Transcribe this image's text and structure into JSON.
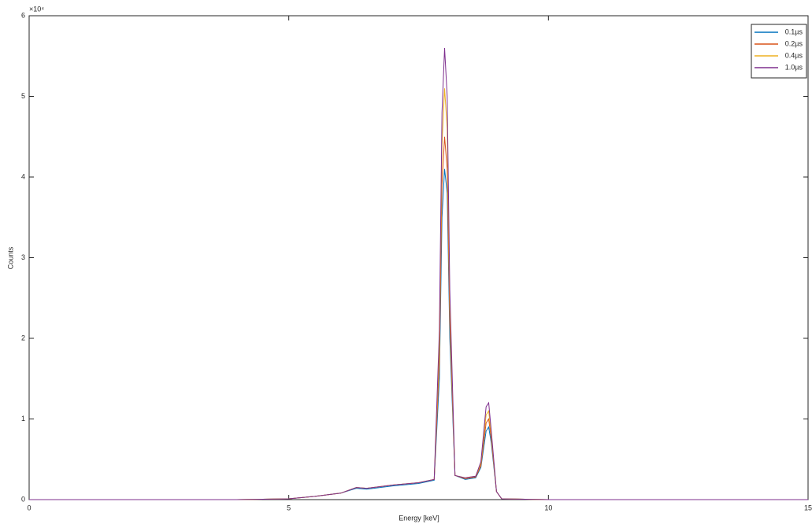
{
  "chart_data": {
    "type": "line",
    "x_label": "Energy [keV]",
    "y_label": "Counts",
    "y_scale_label": "×10⁴",
    "x": [
      0,
      4,
      5,
      5.5,
      6,
      6.3,
      6.5,
      7,
      7.5,
      7.8,
      7.9,
      7.95,
      8.0,
      8.05,
      8.1,
      8.2,
      8.4,
      8.6,
      8.7,
      8.8,
      8.85,
      8.9,
      9.0,
      9.1,
      10,
      15
    ],
    "series": [
      {
        "name": "0.1µs",
        "color": "#0072bd",
        "values": [
          0,
          0,
          0.01,
          0.04,
          0.08,
          0.14,
          0.13,
          0.17,
          0.2,
          0.24,
          1.5,
          3.5,
          4.1,
          3.8,
          2.0,
          0.3,
          0.25,
          0.27,
          0.4,
          0.85,
          0.9,
          0.7,
          0.1,
          0.01,
          0,
          0
        ]
      },
      {
        "name": "0.2µs",
        "color": "#d95319",
        "values": [
          0,
          0,
          0.01,
          0.04,
          0.08,
          0.15,
          0.14,
          0.18,
          0.21,
          0.25,
          1.7,
          3.9,
          4.5,
          4.1,
          2.2,
          0.3,
          0.26,
          0.28,
          0.42,
          0.95,
          1.0,
          0.75,
          0.1,
          0.01,
          0,
          0
        ]
      },
      {
        "name": "0.4µs",
        "color": "#edb120",
        "values": [
          0,
          0,
          0.01,
          0.04,
          0.08,
          0.15,
          0.14,
          0.18,
          0.21,
          0.25,
          1.9,
          4.4,
          5.1,
          4.6,
          2.4,
          0.3,
          0.27,
          0.29,
          0.45,
          1.05,
          1.1,
          0.8,
          0.1,
          0.01,
          0,
          0
        ]
      },
      {
        "name": "1.0µs",
        "color": "#7e2f8e",
        "values": [
          0,
          0,
          0.01,
          0.04,
          0.08,
          0.15,
          0.14,
          0.18,
          0.21,
          0.25,
          2.1,
          4.8,
          5.6,
          5.0,
          2.6,
          0.3,
          0.27,
          0.29,
          0.47,
          1.15,
          1.2,
          0.85,
          0.1,
          0.01,
          0,
          0
        ]
      }
    ],
    "xlim": [
      0,
      15
    ],
    "xticks": [
      0,
      5,
      10,
      15
    ],
    "ylim": [
      0,
      6
    ],
    "yticks": [
      0,
      1,
      2,
      3,
      4,
      5,
      6
    ],
    "grid": false,
    "legend": "top-right"
  }
}
